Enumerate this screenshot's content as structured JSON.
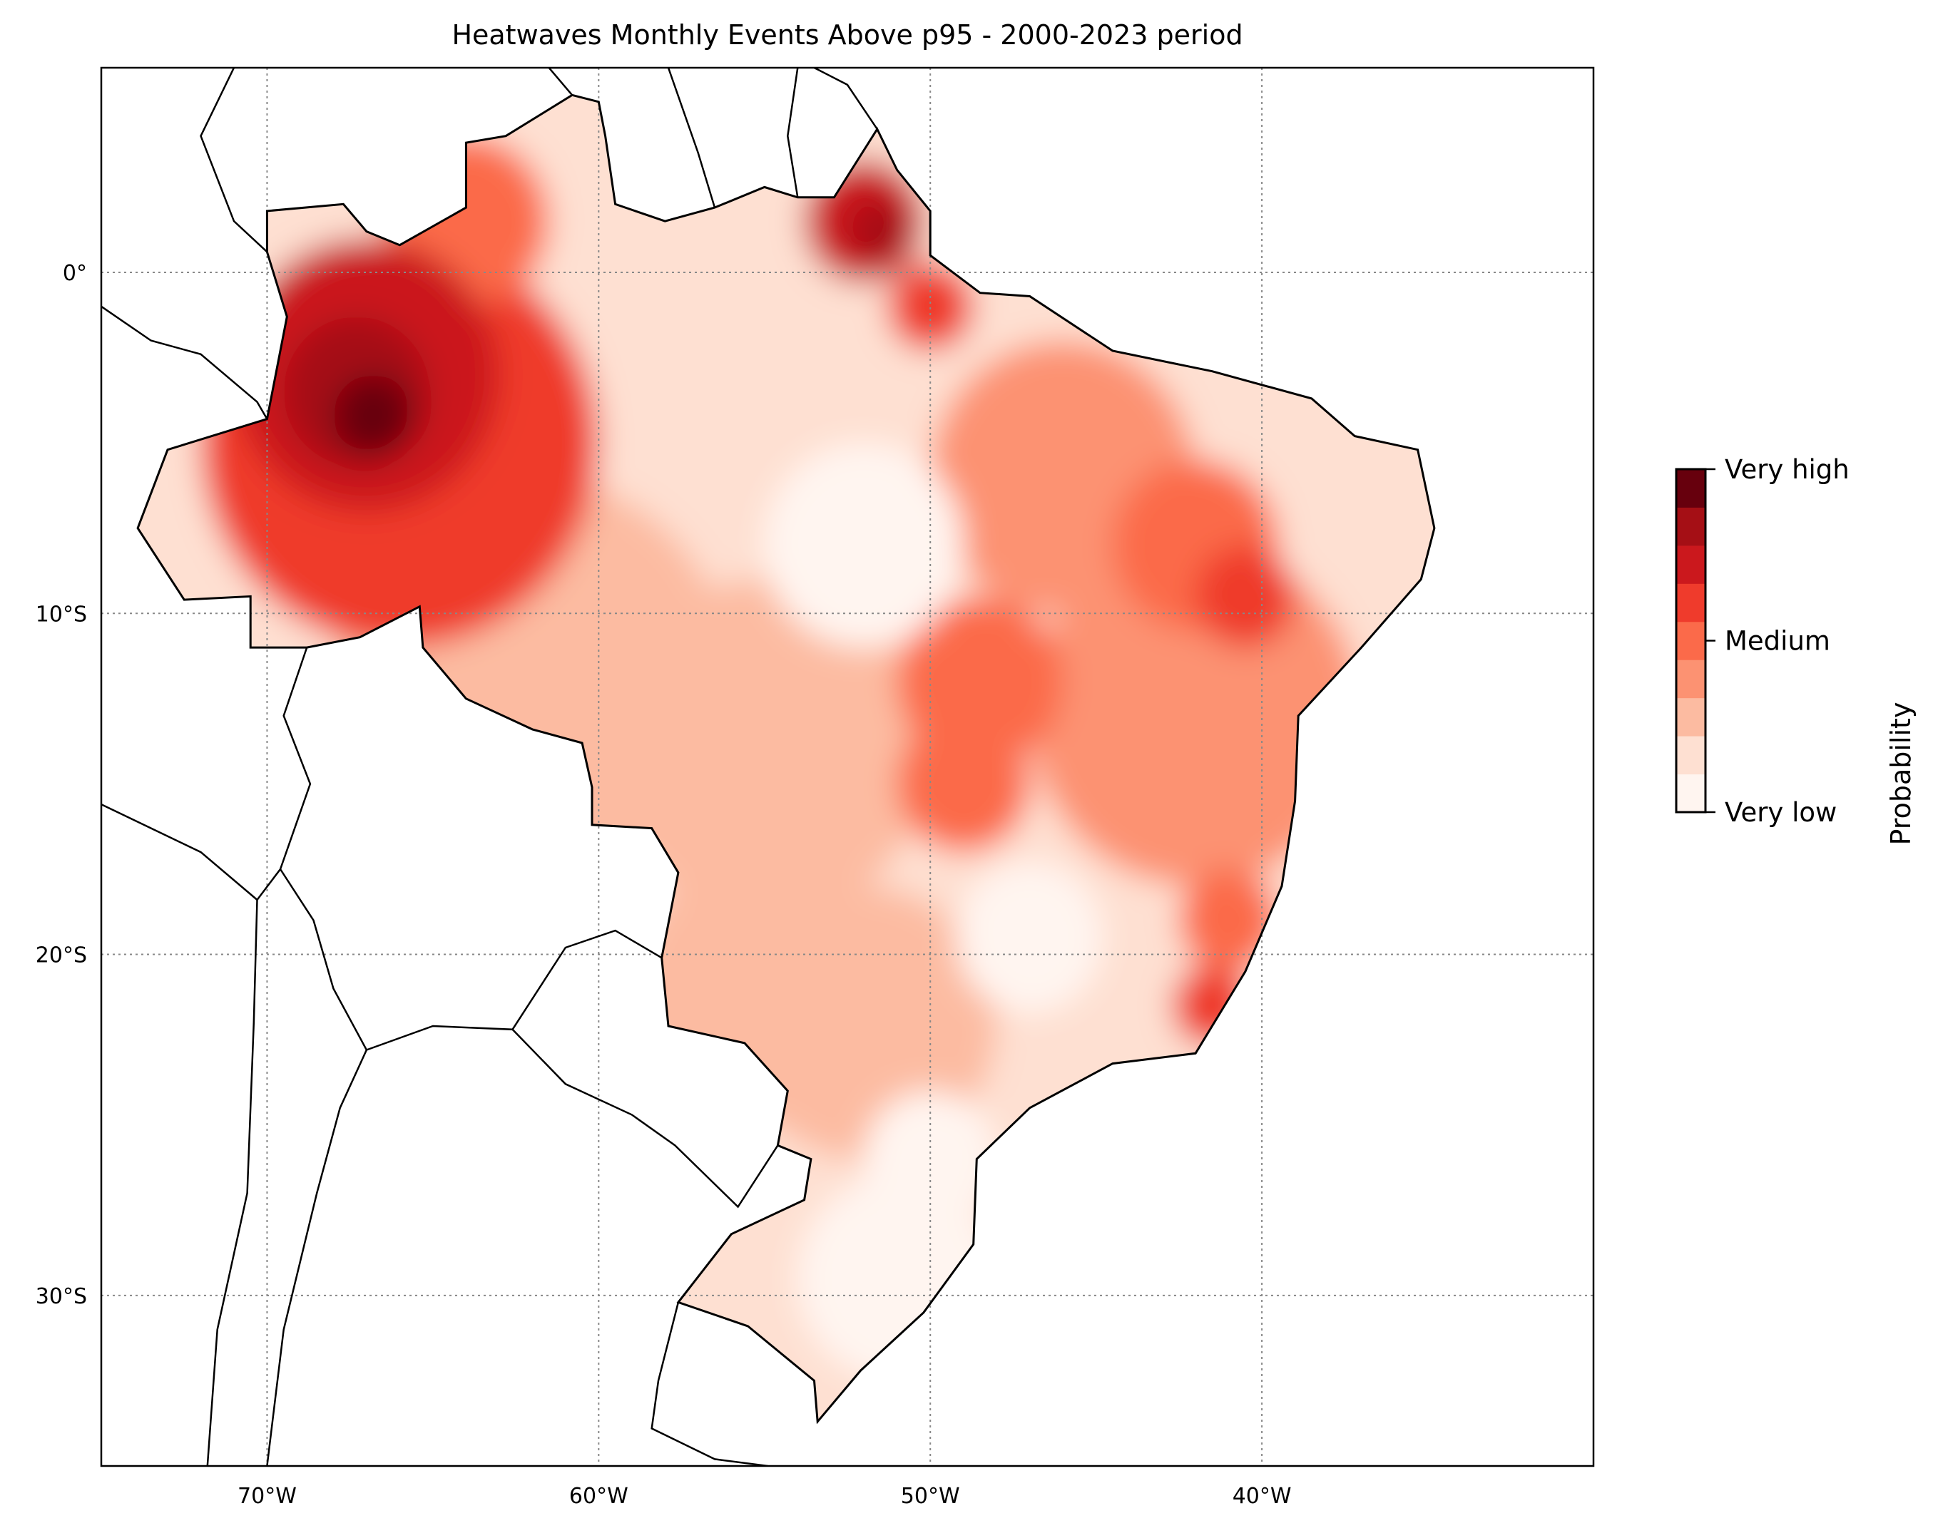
{
  "chart_data": {
    "type": "heatmap",
    "title": "Heatwaves Monthly Events Above p95 - 2000-2023 period",
    "extent": {
      "lon": [
        -75,
        -30
      ],
      "lat": [
        -35,
        6
      ]
    },
    "x_ticks": [
      {
        "value": -70,
        "label": "70°W"
      },
      {
        "value": -60,
        "label": "60°W"
      },
      {
        "value": -50,
        "label": "50°W"
      },
      {
        "value": -40,
        "label": "40°W"
      }
    ],
    "y_ticks": [
      {
        "value": 0,
        "label": "0°"
      },
      {
        "value": -10,
        "label": "10°S"
      },
      {
        "value": -20,
        "label": "20°S"
      },
      {
        "value": -30,
        "label": "30°S"
      }
    ],
    "grid": true,
    "colorbar": {
      "label": "Probability",
      "placement": "right",
      "levels": 9,
      "colors": [
        "#fff5f0",
        "#fee0d2",
        "#fcbba1",
        "#fc9272",
        "#fb6a4a",
        "#ef3b2c",
        "#cb181d",
        "#a50f15",
        "#67000d"
      ],
      "ticks": [
        {
          "value": 0,
          "label": "Very low"
        },
        {
          "value": 0.5,
          "label": "Medium"
        },
        {
          "value": 1,
          "label": "Very high"
        }
      ]
    },
    "hotspots": [
      {
        "lon": -55,
        "lat": -5,
        "r": 30,
        "level": 1
      },
      {
        "lon": -62,
        "lat": -12,
        "r": 6,
        "level": 2
      },
      {
        "lon": -55,
        "lat": -14,
        "r": 5,
        "level": 2
      },
      {
        "lon": -42,
        "lat": -13,
        "r": 5,
        "level": 3
      },
      {
        "lon": -46,
        "lat": -6,
        "r": 4,
        "level": 3
      },
      {
        "lon": -52,
        "lat": -22,
        "r": 4,
        "level": 2
      },
      {
        "lon": -55,
        "lat": -21,
        "r": 4,
        "level": 2
      },
      {
        "lon": -66,
        "lat": -5,
        "r": 6,
        "level": 5
      },
      {
        "lon": -64,
        "lat": 1.5,
        "r": 2.5,
        "level": 4
      },
      {
        "lon": -67,
        "lat": -3,
        "r": 4,
        "level": 6
      },
      {
        "lon": -67.3,
        "lat": -3.5,
        "r": 2.2,
        "level": 7
      },
      {
        "lon": -66.8,
        "lat": -4.2,
        "r": 1.2,
        "level": 8
      },
      {
        "lon": -52,
        "lat": 1.5,
        "r": 1.8,
        "level": 6
      },
      {
        "lon": -51.5,
        "lat": 1.2,
        "r": 0.9,
        "level": 7
      },
      {
        "lon": -50,
        "lat": -1,
        "r": 1.3,
        "level": 5
      },
      {
        "lon": -42,
        "lat": -8,
        "r": 2.5,
        "level": 4
      },
      {
        "lon": -40.5,
        "lat": -9.5,
        "r": 1.5,
        "level": 5
      },
      {
        "lon": -48.5,
        "lat": -12,
        "r": 2.5,
        "level": 4
      },
      {
        "lon": -49,
        "lat": -15,
        "r": 2,
        "level": 4
      },
      {
        "lon": -41.5,
        "lat": -21.5,
        "r": 1.2,
        "level": 5
      },
      {
        "lon": -41,
        "lat": -19,
        "r": 1.5,
        "level": 4
      },
      {
        "lon": -52,
        "lat": -8,
        "r": 3,
        "level": 0
      },
      {
        "lon": -47,
        "lat": -19.5,
        "r": 2.2,
        "level": 0
      },
      {
        "lon": -51,
        "lat": -29.5,
        "r": 3,
        "level": 0
      },
      {
        "lon": -50,
        "lat": -26,
        "r": 2,
        "level": 0
      }
    ]
  }
}
